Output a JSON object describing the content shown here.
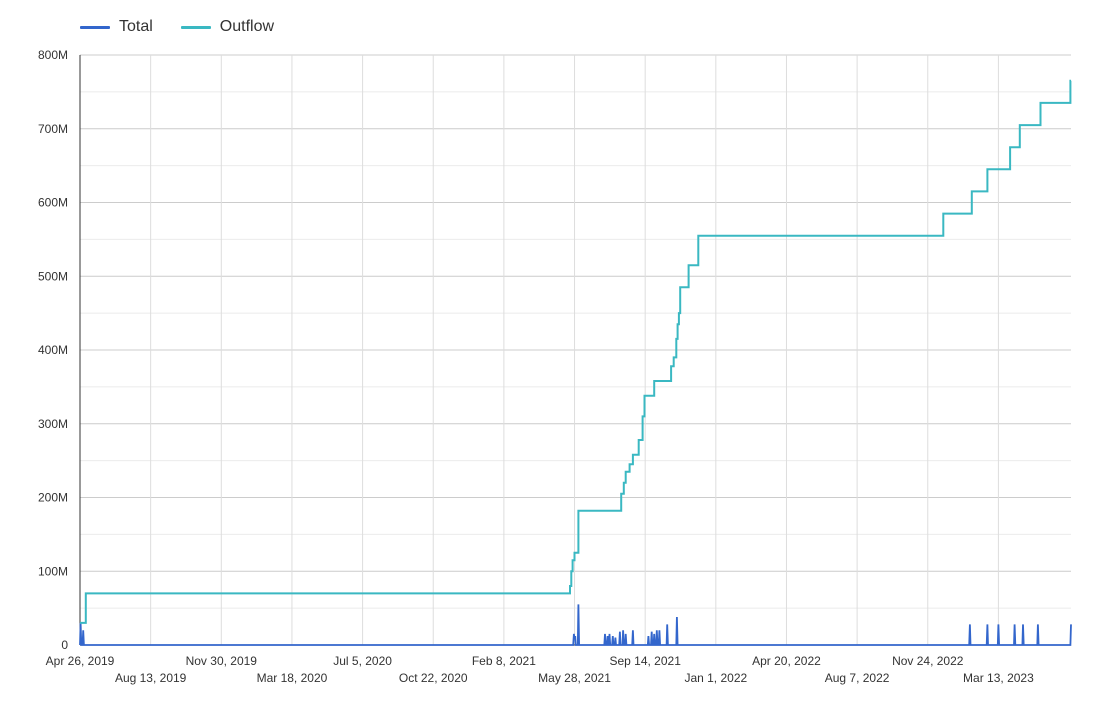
{
  "chart_data": {
    "type": "line",
    "title": "",
    "xlabel": "",
    "ylabel": "",
    "legend_position": "top-left",
    "grid": true,
    "x_range": [
      "2019-04-26",
      "2023-07-03"
    ],
    "ylim": [
      0,
      800000000
    ],
    "y_ticks": [
      {
        "value": 0,
        "label": "0"
      },
      {
        "value": 100000000,
        "label": "100M"
      },
      {
        "value": 200000000,
        "label": "200M"
      },
      {
        "value": 300000000,
        "label": "300M"
      },
      {
        "value": 400000000,
        "label": "400M"
      },
      {
        "value": 500000000,
        "label": "500M"
      },
      {
        "value": 600000000,
        "label": "600M"
      },
      {
        "value": 700000000,
        "label": "700M"
      },
      {
        "value": 800000000,
        "label": "800M"
      }
    ],
    "x_ticks": [
      {
        "date": "2019-04-26",
        "label": "Apr 26, 2019",
        "row": 1
      },
      {
        "date": "2019-08-13",
        "label": "Aug 13, 2019",
        "row": 2
      },
      {
        "date": "2019-11-30",
        "label": "Nov 30, 2019",
        "row": 1
      },
      {
        "date": "2020-03-18",
        "label": "Mar 18, 2020",
        "row": 2
      },
      {
        "date": "2020-07-05",
        "label": "Jul 5, 2020",
        "row": 1
      },
      {
        "date": "2020-10-22",
        "label": "Oct 22, 2020",
        "row": 2
      },
      {
        "date": "2021-02-08",
        "label": "Feb 8, 2021",
        "row": 1
      },
      {
        "date": "2021-05-28",
        "label": "May 28, 2021",
        "row": 2
      },
      {
        "date": "2021-09-14",
        "label": "Sep 14, 2021",
        "row": 1
      },
      {
        "date": "2022-01-01",
        "label": "Jan 1, 2022",
        "row": 2
      },
      {
        "date": "2022-04-20",
        "label": "Apr 20, 2022",
        "row": 1
      },
      {
        "date": "2022-08-07",
        "label": "Aug 7, 2022",
        "row": 2
      },
      {
        "date": "2022-11-24",
        "label": "Nov 24, 2022",
        "row": 1
      },
      {
        "date": "2023-03-13",
        "label": "Mar 13, 2023",
        "row": 2
      }
    ],
    "series": [
      {
        "name": "Total",
        "color": "#3366cc",
        "step": false,
        "points": [
          [
            "2019-04-26",
            0
          ],
          [
            "2019-04-27",
            30000000
          ],
          [
            "2019-04-28",
            0
          ],
          [
            "2019-04-30",
            0
          ],
          [
            "2019-05-01",
            20000000
          ],
          [
            "2019-05-02",
            0
          ],
          [
            "2021-05-26",
            0
          ],
          [
            "2021-05-27",
            15000000
          ],
          [
            "2021-05-28",
            8000000
          ],
          [
            "2021-05-29",
            12000000
          ],
          [
            "2021-05-30",
            0
          ],
          [
            "2021-06-02",
            0
          ],
          [
            "2021-06-03",
            55000000
          ],
          [
            "2021-06-04",
            0
          ],
          [
            "2021-07-13",
            0
          ],
          [
            "2021-07-14",
            15000000
          ],
          [
            "2021-07-15",
            0
          ],
          [
            "2021-07-17",
            0
          ],
          [
            "2021-07-18",
            12000000
          ],
          [
            "2021-07-19",
            0
          ],
          [
            "2021-07-20",
            0
          ],
          [
            "2021-07-21",
            15000000
          ],
          [
            "2021-07-22",
            0
          ],
          [
            "2021-07-25",
            0
          ],
          [
            "2021-07-26",
            12000000
          ],
          [
            "2021-07-27",
            0
          ],
          [
            "2021-07-29",
            0
          ],
          [
            "2021-07-30",
            10000000
          ],
          [
            "2021-07-31",
            0
          ],
          [
            "2021-08-05",
            0
          ],
          [
            "2021-08-06",
            18000000
          ],
          [
            "2021-08-07",
            0
          ],
          [
            "2021-08-10",
            0
          ],
          [
            "2021-08-11",
            20000000
          ],
          [
            "2021-08-12",
            0
          ],
          [
            "2021-08-14",
            0
          ],
          [
            "2021-08-15",
            15000000
          ],
          [
            "2021-08-16",
            0
          ],
          [
            "2021-08-25",
            0
          ],
          [
            "2021-08-26",
            20000000
          ],
          [
            "2021-08-27",
            0
          ],
          [
            "2021-09-18",
            0
          ],
          [
            "2021-09-19",
            12000000
          ],
          [
            "2021-09-20",
            0
          ],
          [
            "2021-09-23",
            0
          ],
          [
            "2021-09-24",
            18000000
          ],
          [
            "2021-09-25",
            0
          ],
          [
            "2021-09-27",
            0
          ],
          [
            "2021-09-28",
            15000000
          ],
          [
            "2021-09-29",
            0
          ],
          [
            "2021-10-01",
            0
          ],
          [
            "2021-10-02",
            20000000
          ],
          [
            "2021-10-03",
            0
          ],
          [
            "2021-10-05",
            0
          ],
          [
            "2021-10-06",
            20000000
          ],
          [
            "2021-10-07",
            0
          ],
          [
            "2021-10-17",
            0
          ],
          [
            "2021-10-18",
            28000000
          ],
          [
            "2021-10-19",
            0
          ],
          [
            "2021-11-01",
            0
          ],
          [
            "2021-11-02",
            38000000
          ],
          [
            "2021-11-03",
            0
          ],
          [
            "2023-01-27",
            0
          ],
          [
            "2023-01-28",
            28000000
          ],
          [
            "2023-01-29",
            0
          ],
          [
            "2023-02-23",
            0
          ],
          [
            "2023-02-24",
            28000000
          ],
          [
            "2023-02-25",
            0
          ],
          [
            "2023-03-12",
            0
          ],
          [
            "2023-03-13",
            28000000
          ],
          [
            "2023-03-14",
            0
          ],
          [
            "2023-04-06",
            0
          ],
          [
            "2023-04-07",
            28000000
          ],
          [
            "2023-04-08",
            0
          ],
          [
            "2023-04-19",
            0
          ],
          [
            "2023-04-20",
            28000000
          ],
          [
            "2023-04-21",
            0
          ],
          [
            "2023-05-12",
            0
          ],
          [
            "2023-05-13",
            28000000
          ],
          [
            "2023-05-14",
            0
          ],
          [
            "2023-07-02",
            0
          ],
          [
            "2023-07-03",
            28000000
          ]
        ]
      },
      {
        "name": "Outflow",
        "color": "#3ab8c2",
        "step": true,
        "points": [
          [
            "2019-04-26",
            30000000
          ],
          [
            "2019-05-05",
            70000000
          ],
          [
            "2021-05-21",
            80000000
          ],
          [
            "2021-05-23",
            100000000
          ],
          [
            "2021-05-25",
            115000000
          ],
          [
            "2021-05-28",
            125000000
          ],
          [
            "2021-06-03",
            182000000
          ],
          [
            "2021-08-08",
            205000000
          ],
          [
            "2021-08-12",
            220000000
          ],
          [
            "2021-08-15",
            235000000
          ],
          [
            "2021-08-21",
            245000000
          ],
          [
            "2021-08-26",
            258000000
          ],
          [
            "2021-09-04",
            278000000
          ],
          [
            "2021-09-10",
            310000000
          ],
          [
            "2021-09-13",
            338000000
          ],
          [
            "2021-09-28",
            358000000
          ],
          [
            "2021-10-24",
            378000000
          ],
          [
            "2021-10-28",
            390000000
          ],
          [
            "2021-11-01",
            415000000
          ],
          [
            "2021-11-03",
            435000000
          ],
          [
            "2021-11-05",
            450000000
          ],
          [
            "2021-11-07",
            485000000
          ],
          [
            "2021-11-20",
            515000000
          ],
          [
            "2021-12-05",
            555000000
          ],
          [
            "2022-12-18",
            585000000
          ],
          [
            "2023-01-31",
            615000000
          ],
          [
            "2023-02-24",
            645000000
          ],
          [
            "2023-03-31",
            675000000
          ],
          [
            "2023-04-15",
            705000000
          ],
          [
            "2023-05-17",
            735000000
          ],
          [
            "2023-07-02",
            765000000
          ],
          [
            "2023-07-03",
            765000000
          ]
        ]
      }
    ]
  }
}
